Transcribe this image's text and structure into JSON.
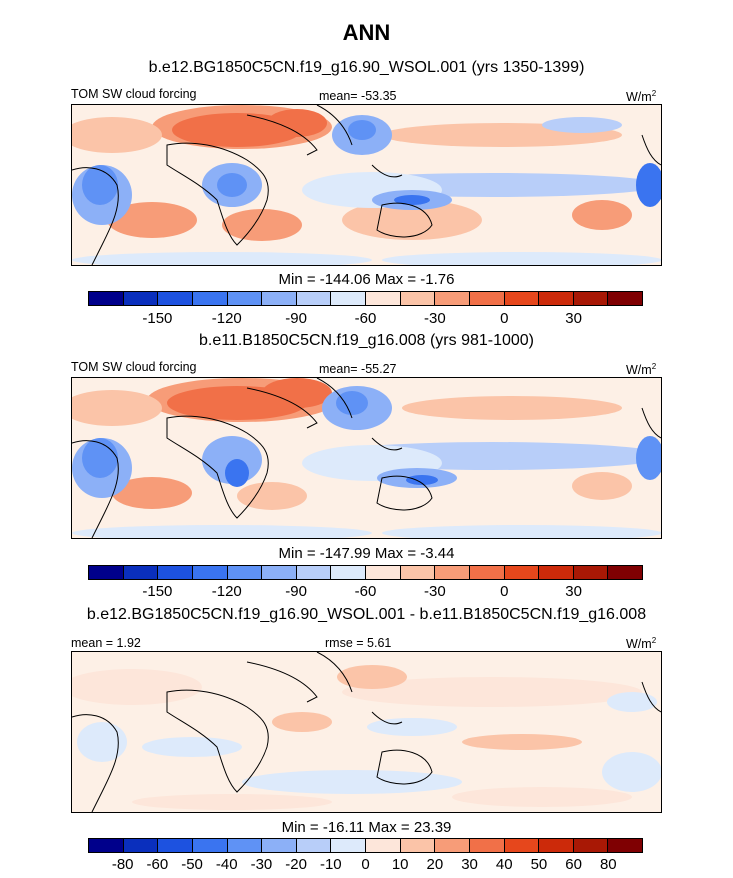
{
  "page_title": "ANN",
  "panels": [
    {
      "case_title": "b.e12.BG1850C5CN.f19_g16.90_WSOL.001 (yrs 1350-1399)",
      "left_label": "TOM SW cloud forcing",
      "center_label": "mean= -53.35",
      "units_base": "W/m",
      "units_exp": "2",
      "minmax": "Min = -144.06 Max =  -1.76",
      "colorbar_colors": [
        "#00008b",
        "#0a2fbd",
        "#1d52e0",
        "#3a74f0",
        "#5f92f5",
        "#8cb0f7",
        "#b8cef9",
        "#ddeafb",
        "#fde6da",
        "#fbc4a8",
        "#f79c78",
        "#f17048",
        "#e6471c",
        "#cc2a0a",
        "#a81805",
        "#7f0002"
      ],
      "colorbar_ticks": [
        "-150",
        "-120",
        "-90",
        "-60",
        "-30",
        "0",
        "30"
      ]
    },
    {
      "case_title": "b.e11.B1850C5CN.f19_g16.008 (yrs 981-1000)",
      "left_label": "TOM SW cloud forcing",
      "center_label": "mean= -55.27",
      "units_base": "W/m",
      "units_exp": "2",
      "minmax": "Min = -147.99 Max =  -3.44",
      "colorbar_colors": [
        "#00008b",
        "#0a2fbd",
        "#1d52e0",
        "#3a74f0",
        "#5f92f5",
        "#8cb0f7",
        "#b8cef9",
        "#ddeafb",
        "#fde6da",
        "#fbc4a8",
        "#f79c78",
        "#f17048",
        "#e6471c",
        "#cc2a0a",
        "#a81805",
        "#7f0002"
      ],
      "colorbar_ticks": [
        "-150",
        "-120",
        "-90",
        "-60",
        "-30",
        "0",
        "30"
      ]
    },
    {
      "case_title": "b.e12.BG1850C5CN.f19_g16.90_WSOL.001 - b.e11.B1850C5CN.f19_g16.008",
      "left_label": "mean =   1.92",
      "center_label": "rmse =   5.61",
      "units_base": "W/m",
      "units_exp": "2",
      "minmax": "Min = -16.11 Max =  23.39",
      "colorbar_colors": [
        "#00008b",
        "#0a2fbd",
        "#1d52e0",
        "#3a74f0",
        "#5f92f5",
        "#8cb0f7",
        "#b8cef9",
        "#ddeafb",
        "#fde6da",
        "#fbc4a8",
        "#f79c78",
        "#f17048",
        "#e6471c",
        "#cc2a0a",
        "#a81805",
        "#7f0002"
      ],
      "colorbar_ticks": [
        "-80",
        "-60",
        "-50",
        "-40",
        "-30",
        "-20",
        "-10",
        "0",
        "10",
        "20",
        "30",
        "40",
        "50",
        "60",
        "80"
      ]
    }
  ]
}
